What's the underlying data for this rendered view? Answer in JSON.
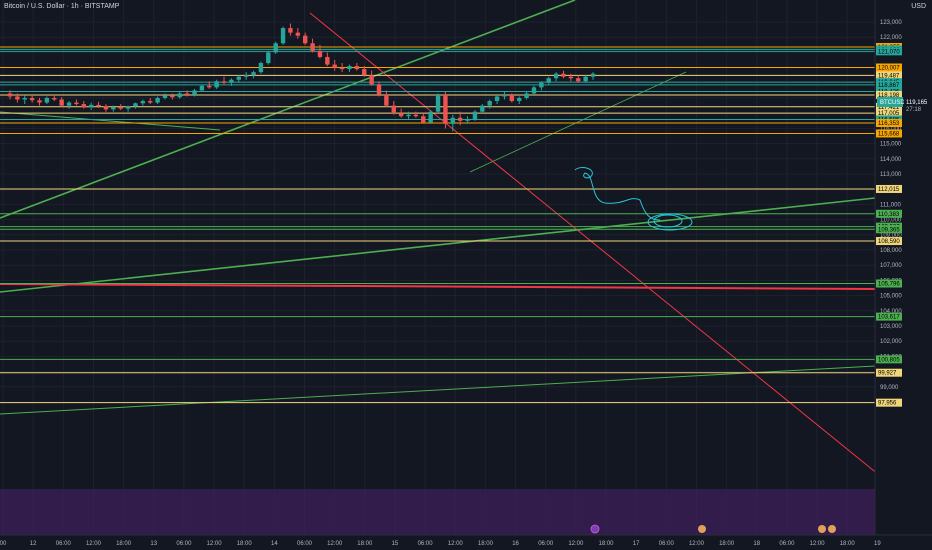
{
  "header": {
    "title": "Bitcoin / U.S. Dollar · 1h · BITSTAMP",
    "currency": "USD"
  },
  "colors": {
    "background": "#131722",
    "up": "#26a69a",
    "down": "#ef5350",
    "orange": "#f7a600",
    "yellow": "#f0d67a",
    "green": "#4caf50",
    "teal": "#26a69a",
    "red": "#f23645",
    "bottom_zone": "#3d1f5a"
  },
  "symbol_tag": {
    "label": "BTCUSD",
    "price": "119,165",
    "countdown": "27:18"
  },
  "chart_data": {
    "type": "candlestick",
    "symbol": "BTCUSD",
    "timeframe": "1h",
    "exchange": "BITSTAMP",
    "ylim": [
      97000,
      123500
    ],
    "y_ticks": [
      "123,000",
      "122,000",
      "121,000",
      "120,000",
      "119,000",
      "118,000",
      "117,000",
      "116,000",
      "115,000",
      "114,000",
      "113,000",
      "112,000",
      "111,000",
      "110,000",
      "109,000",
      "108,000",
      "107,000",
      "106,000",
      "105,000",
      "104,000",
      "103,000",
      "102,000",
      "101,000",
      "100,000",
      "99,000",
      "98,000"
    ],
    "x_ticks": [
      "00",
      "12",
      "06:00",
      "12:00",
      "18:00",
      "13",
      "06:00",
      "12:00",
      "18:00",
      "14",
      "06:00",
      "12:00",
      "18:00",
      "15",
      "06:00",
      "12:00",
      "18:00",
      "16",
      "06:00",
      "12:00",
      "18:00",
      "17",
      "06:00",
      "12:00",
      "18:00",
      "18",
      "06:00",
      "12:00",
      "18:00",
      "19"
    ],
    "levels": [
      {
        "label": "121,355",
        "price": 121355,
        "color": "orange"
      },
      {
        "label": "121,199",
        "price": 121199,
        "color": "teal"
      },
      {
        "label": "121,070",
        "price": 121070,
        "color": "teal"
      },
      {
        "label": "120,007",
        "price": 120007,
        "color": "orange"
      },
      {
        "label": "119,487",
        "price": 119487,
        "color": "yellow"
      },
      {
        "label": "119,045",
        "price": 119045,
        "color": "teal"
      },
      {
        "label": "118,867",
        "price": 118867,
        "color": "teal"
      },
      {
        "label": "118,426",
        "price": 118426,
        "color": "teal"
      },
      {
        "label": "118,198",
        "price": 118198,
        "color": "yellow"
      },
      {
        "label": "117,421",
        "price": 117421,
        "color": "yellow"
      },
      {
        "label": "117,005",
        "price": 117005,
        "color": "yellow"
      },
      {
        "label": "116,586",
        "price": 116586,
        "color": "teal"
      },
      {
        "label": "116,353",
        "price": 116353,
        "color": "orange"
      },
      {
        "label": "115,668",
        "price": 115668,
        "color": "orange"
      },
      {
        "label": "112,015",
        "price": 112015,
        "color": "yellow"
      },
      {
        "label": "110,383",
        "price": 110383,
        "color": "green"
      },
      {
        "label": "109,537",
        "price": 109537,
        "color": "green"
      },
      {
        "label": "109,365",
        "price": 109365,
        "color": "green"
      },
      {
        "label": "108,590",
        "price": 108590,
        "color": "yellow"
      },
      {
        "label": "105,796",
        "price": 105796,
        "color": "green"
      },
      {
        "label": "103,617",
        "price": 103617,
        "color": "green"
      },
      {
        "label": "100,805",
        "price": 100805,
        "color": "green"
      },
      {
        "label": "99,927",
        "price": 99927,
        "color": "yellow"
      },
      {
        "label": "97,956",
        "price": 97956,
        "color": "yellow"
      }
    ],
    "candles": [
      [
        118300,
        118500,
        117900,
        118100
      ],
      [
        118100,
        118300,
        117700,
        117900
      ],
      [
        117900,
        118150,
        117600,
        118000
      ],
      [
        118000,
        118200,
        117700,
        117850
      ],
      [
        117850,
        118000,
        117500,
        117700
      ],
      [
        117700,
        118100,
        117600,
        118000
      ],
      [
        118000,
        118250,
        117800,
        117900
      ],
      [
        117900,
        118050,
        117400,
        117500
      ],
      [
        117500,
        117800,
        117300,
        117700
      ],
      [
        117700,
        117900,
        117500,
        117600
      ],
      [
        117600,
        117800,
        117300,
        117400
      ],
      [
        117400,
        117700,
        117200,
        117550
      ],
      [
        117550,
        117750,
        117350,
        117450
      ],
      [
        117450,
        117600,
        117100,
        117250
      ],
      [
        117250,
        117500,
        117100,
        117400
      ],
      [
        117400,
        117600,
        117200,
        117300
      ],
      [
        117300,
        117500,
        117100,
        117450
      ],
      [
        117450,
        117700,
        117300,
        117650
      ],
      [
        117650,
        117900,
        117500,
        117800
      ],
      [
        117800,
        118000,
        117600,
        117700
      ],
      [
        117700,
        118100,
        117600,
        118000
      ],
      [
        118000,
        118300,
        117900,
        118150
      ],
      [
        118150,
        118300,
        117900,
        118050
      ],
      [
        118050,
        118400,
        117950,
        118300
      ],
      [
        118300,
        118500,
        118100,
        118200
      ],
      [
        118200,
        118600,
        118100,
        118500
      ],
      [
        118500,
        118900,
        118400,
        118800
      ],
      [
        118800,
        119100,
        118600,
        118700
      ],
      [
        118700,
        119200,
        118600,
        119100
      ],
      [
        119100,
        119400,
        118900,
        119000
      ],
      [
        119000,
        119300,
        118800,
        119200
      ],
      [
        119200,
        119500,
        119000,
        119400
      ],
      [
        119400,
        119700,
        119200,
        119500
      ],
      [
        119500,
        119800,
        119300,
        119700
      ],
      [
        119700,
        120400,
        119600,
        120300
      ],
      [
        120300,
        121100,
        120200,
        121000
      ],
      [
        121000,
        121700,
        120900,
        121600
      ],
      [
        121600,
        122700,
        121500,
        122600
      ],
      [
        122600,
        122900,
        122100,
        122300
      ],
      [
        122300,
        122600,
        121900,
        122100
      ],
      [
        122100,
        122300,
        121500,
        121600
      ],
      [
        121600,
        121900,
        121000,
        121100
      ],
      [
        121100,
        121500,
        120600,
        120700
      ],
      [
        120700,
        121000,
        120100,
        120200
      ],
      [
        120200,
        120500,
        119800,
        120000
      ],
      [
        120000,
        120300,
        119700,
        119900
      ],
      [
        119900,
        120200,
        119700,
        120100
      ],
      [
        120100,
        120300,
        119800,
        119900
      ],
      [
        119900,
        120100,
        119400,
        119500
      ],
      [
        119500,
        119800,
        118800,
        118900
      ],
      [
        118900,
        119100,
        118100,
        118200
      ],
      [
        118200,
        118500,
        117400,
        117500
      ],
      [
        117500,
        117800,
        116900,
        117000
      ],
      [
        117000,
        117300,
        116700,
        116800
      ],
      [
        116800,
        117100,
        116600,
        116900
      ],
      [
        116900,
        117100,
        116700,
        116800
      ],
      [
        116800,
        117000,
        116300,
        116400
      ],
      [
        116400,
        117200,
        116300,
        117100
      ],
      [
        117100,
        118300,
        117000,
        118200
      ],
      [
        118200,
        118400,
        116000,
        116300
      ],
      [
        116300,
        116900,
        115800,
        116700
      ],
      [
        116700,
        117100,
        116200,
        116500
      ],
      [
        116500,
        116800,
        116300,
        116600
      ],
      [
        116600,
        117200,
        116500,
        117100
      ],
      [
        117100,
        117600,
        117000,
        117500
      ],
      [
        117500,
        117900,
        117300,
        117800
      ],
      [
        117800,
        118200,
        117600,
        118100
      ],
      [
        118100,
        118400,
        117900,
        118200
      ],
      [
        118200,
        118300,
        117700,
        117800
      ],
      [
        117800,
        118100,
        117600,
        118000
      ],
      [
        118000,
        118400,
        117900,
        118300
      ],
      [
        118300,
        118800,
        118200,
        118700
      ],
      [
        118700,
        119100,
        118500,
        119000
      ],
      [
        119000,
        119400,
        118900,
        119300
      ],
      [
        119300,
        119700,
        119100,
        119600
      ],
      [
        119600,
        119800,
        119300,
        119400
      ],
      [
        119400,
        119600,
        119100,
        119300
      ],
      [
        119300,
        119500,
        119000,
        119100
      ],
      [
        119100,
        119500,
        119000,
        119400
      ],
      [
        119400,
        119700,
        119200,
        119600
      ]
    ]
  }
}
